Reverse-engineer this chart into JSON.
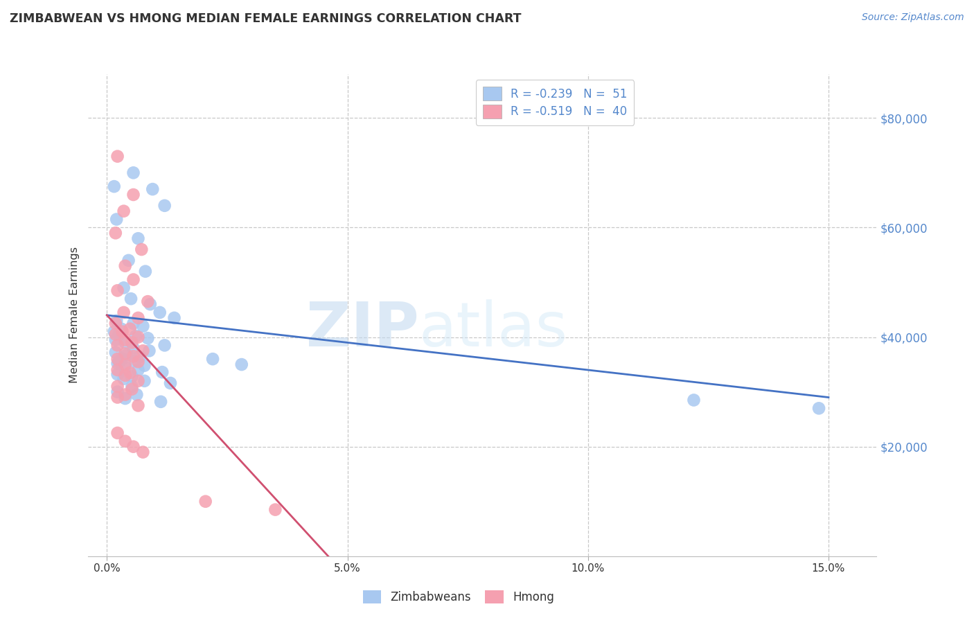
{
  "title": "ZIMBABWEAN VS HMONG MEDIAN FEMALE EARNINGS CORRELATION CHART",
  "source": "Source: ZipAtlas.com",
  "ylabel": "Median Female Earnings",
  "xlabel_ticks": [
    "0.0%",
    "5.0%",
    "10.0%",
    "15.0%"
  ],
  "xlabel_vals": [
    0.0,
    5.0,
    10.0,
    15.0
  ],
  "ylabel_ticks": [
    20000,
    40000,
    60000,
    80000
  ],
  "ylim": [
    0,
    88000
  ],
  "xlim": [
    -0.4,
    16.0
  ],
  "legend1_label": "R = -0.239   N =  51",
  "legend2_label": "R = -0.519   N =  40",
  "zim_color": "#a8c8f0",
  "hmong_color": "#f5a0b0",
  "zim_line_color": "#4472c4",
  "hmong_line_color": "#d05070",
  "watermark_zip": "ZIP",
  "watermark_atlas": "atlas",
  "background_color": "#ffffff",
  "zim_points": [
    [
      0.15,
      67500
    ],
    [
      0.55,
      70000
    ],
    [
      0.95,
      67000
    ],
    [
      1.2,
      64000
    ],
    [
      0.2,
      61500
    ],
    [
      0.65,
      58000
    ],
    [
      0.45,
      54000
    ],
    [
      0.8,
      52000
    ],
    [
      0.35,
      49000
    ],
    [
      0.5,
      47000
    ],
    [
      0.9,
      46000
    ],
    [
      1.1,
      44500
    ],
    [
      1.4,
      43500
    ],
    [
      0.2,
      43000
    ],
    [
      0.55,
      42500
    ],
    [
      0.75,
      42000
    ],
    [
      0.3,
      41500
    ],
    [
      0.15,
      41000
    ],
    [
      0.25,
      40500
    ],
    [
      0.6,
      40200
    ],
    [
      0.85,
      39800
    ],
    [
      0.18,
      39500
    ],
    [
      0.38,
      39000
    ],
    [
      1.2,
      38500
    ],
    [
      0.55,
      38000
    ],
    [
      0.88,
      37500
    ],
    [
      0.18,
      37200
    ],
    [
      0.42,
      36800
    ],
    [
      0.68,
      36400
    ],
    [
      0.32,
      36000
    ],
    [
      0.58,
      35600
    ],
    [
      0.22,
      35200
    ],
    [
      0.78,
      34800
    ],
    [
      0.38,
      34400
    ],
    [
      0.65,
      34000
    ],
    [
      1.15,
      33600
    ],
    [
      0.22,
      33200
    ],
    [
      0.52,
      32800
    ],
    [
      0.35,
      32400
    ],
    [
      0.78,
      32000
    ],
    [
      1.32,
      31600
    ],
    [
      0.52,
      31000
    ],
    [
      0.22,
      30000
    ],
    [
      0.62,
      29500
    ],
    [
      0.38,
      28800
    ],
    [
      1.12,
      28200
    ],
    [
      0.25,
      35500
    ],
    [
      2.2,
      36000
    ],
    [
      2.8,
      35000
    ],
    [
      12.2,
      28500
    ],
    [
      14.8,
      27000
    ]
  ],
  "hmong_points": [
    [
      0.22,
      73000
    ],
    [
      0.55,
      66000
    ],
    [
      0.35,
      63000
    ],
    [
      0.18,
      59000
    ],
    [
      0.72,
      56000
    ],
    [
      0.38,
      53000
    ],
    [
      0.55,
      50500
    ],
    [
      0.22,
      48500
    ],
    [
      0.85,
      46500
    ],
    [
      0.35,
      44500
    ],
    [
      0.65,
      43500
    ],
    [
      0.18,
      42500
    ],
    [
      0.48,
      41500
    ],
    [
      0.32,
      41000
    ],
    [
      0.18,
      40500
    ],
    [
      0.65,
      40000
    ],
    [
      0.38,
      39500
    ],
    [
      0.52,
      39000
    ],
    [
      0.22,
      38500
    ],
    [
      0.75,
      37500
    ],
    [
      0.38,
      37000
    ],
    [
      0.55,
      36500
    ],
    [
      0.22,
      36000
    ],
    [
      0.65,
      35500
    ],
    [
      0.38,
      35000
    ],
    [
      0.22,
      34000
    ],
    [
      0.48,
      33500
    ],
    [
      0.38,
      33000
    ],
    [
      0.65,
      32000
    ],
    [
      0.22,
      31000
    ],
    [
      0.52,
      30500
    ],
    [
      0.38,
      29500
    ],
    [
      0.22,
      29000
    ],
    [
      0.65,
      27500
    ],
    [
      0.22,
      22500
    ],
    [
      0.38,
      21000
    ],
    [
      0.55,
      20000
    ],
    [
      2.05,
      10000
    ],
    [
      3.5,
      8500
    ],
    [
      0.75,
      19000
    ]
  ],
  "zim_line_x": [
    0.0,
    15.0
  ],
  "zim_line_y": [
    44000,
    29000
  ],
  "hmong_line_x": [
    0.0,
    4.6
  ],
  "hmong_line_y": [
    44000,
    0
  ],
  "grid_color": "#c8c8c8",
  "tick_color": "#5588cc",
  "bottom_legend_labels": [
    "Zimbabweans",
    "Hmong"
  ]
}
